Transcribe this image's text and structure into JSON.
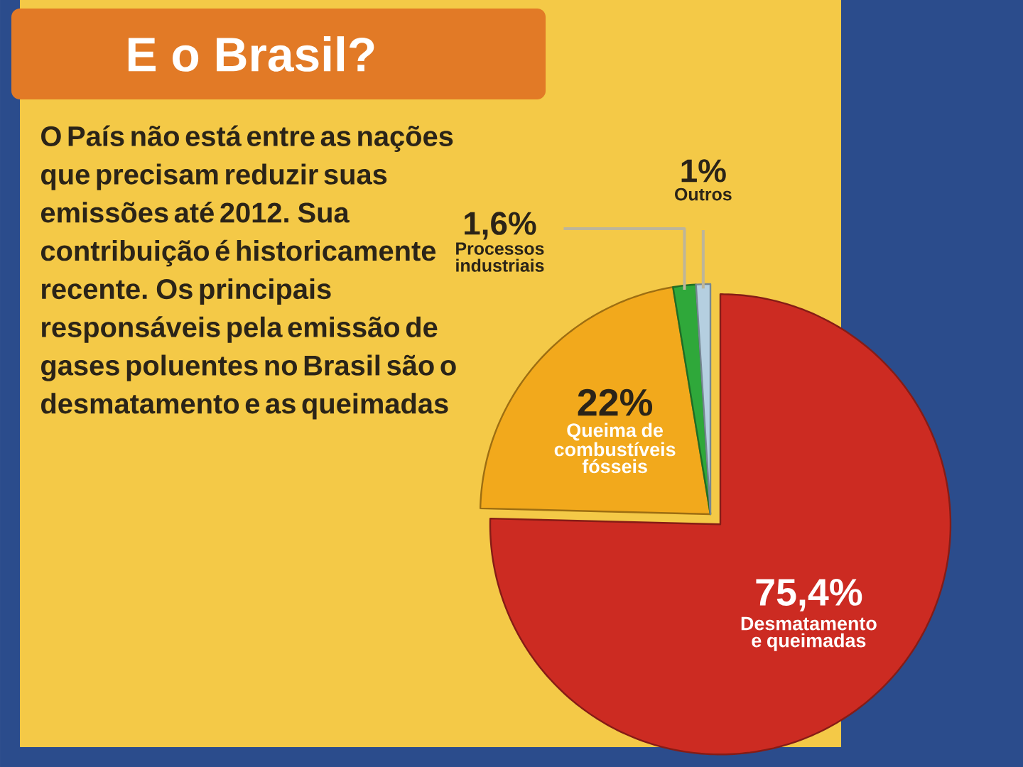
{
  "chart_data": {
    "type": "pie",
    "title": "E o Brasil?",
    "subtitle": "O País não está entre as nações que precisam reduzir suas emissões até 2012. Sua contribuição é historicamente recente. Os principais responsáveis pela emissão de gases poluentes no Brasil são o desmatamento e as queimadas",
    "categories": [
      "Desmatamento e queimadas",
      "Queima de combustíveis fósseis",
      "Processos industriais",
      "Outros"
    ],
    "values": [
      75.4,
      22,
      1.6,
      1
    ],
    "colors": [
      "#cc2b22",
      "#f2a91c",
      "#2fa83a",
      "#b5cfe0"
    ],
    "value_labels": [
      "75,4%",
      "22%",
      "1,6%",
      "1%"
    ]
  }
}
